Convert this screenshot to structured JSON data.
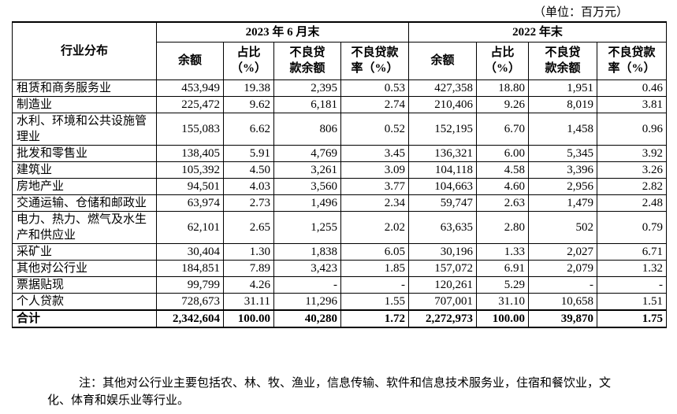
{
  "unit": "（单位：百万元）",
  "table": {
    "stub_header": "行业分布",
    "groups": [
      "2023 年 6 月末",
      "2022 年末"
    ],
    "columns": [
      "余额",
      "占比\n（%）",
      "不良贷\n款余额",
      "不良贷款\n率（%）"
    ],
    "rows": [
      [
        "租赁和商务服务业",
        "453,949",
        "19.38",
        "2,395",
        "0.53",
        "427,358",
        "18.80",
        "1,951",
        "0.46"
      ],
      [
        "制造业",
        "225,472",
        "9.62",
        "6,181",
        "2.74",
        "210,406",
        "9.26",
        "8,019",
        "3.81"
      ],
      [
        "水利、环境和公共设施管理业",
        "155,083",
        "6.62",
        "806",
        "0.52",
        "152,195",
        "6.70",
        "1,458",
        "0.96"
      ],
      [
        "批发和零售业",
        "138,405",
        "5.91",
        "4,769",
        "3.45",
        "136,321",
        "6.00",
        "5,345",
        "3.92"
      ],
      [
        "建筑业",
        "105,392",
        "4.50",
        "3,261",
        "3.09",
        "104,118",
        "4.58",
        "3,396",
        "3.26"
      ],
      [
        "房地产业",
        "94,501",
        "4.03",
        "3,560",
        "3.77",
        "104,663",
        "4.60",
        "2,956",
        "2.82"
      ],
      [
        "交通运输、仓储和邮政业",
        "63,974",
        "2.73",
        "1,496",
        "2.34",
        "59,747",
        "2.63",
        "1,479",
        "2.48"
      ],
      [
        "电力、热力、燃气及水生产和供应业",
        "62,101",
        "2.65",
        "1,255",
        "2.02",
        "63,635",
        "2.80",
        "502",
        "0.79"
      ],
      [
        "采矿业",
        "30,404",
        "1.30",
        "1,838",
        "6.05",
        "30,196",
        "1.33",
        "2,027",
        "6.71"
      ],
      [
        "其他对公行业",
        "184,851",
        "7.89",
        "3,423",
        "1.85",
        "157,072",
        "6.91",
        "2,079",
        "1.32"
      ],
      [
        "票据贴现",
        "99,799",
        "4.26",
        "-",
        "-",
        "120,261",
        "5.29",
        "-",
        "-"
      ],
      [
        "个人贷款",
        "728,673",
        "31.11",
        "11,296",
        "1.55",
        "707,001",
        "31.10",
        "10,658",
        "1.51"
      ]
    ],
    "total_row": [
      "合计",
      "2,342,604",
      "100.00",
      "40,280",
      "1.72",
      "2,272,973",
      "100.00",
      "39,870",
      "1.75"
    ]
  },
  "note": "注：其他对公行业主要包括农、林、牧、渔业，信息传输、软件和信息技术服务业，住宿和餐饮业，文化、体育和娱乐业等行业。"
}
